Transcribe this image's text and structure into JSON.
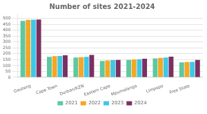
{
  "chart_data": {
    "type": "bar",
    "title": "Number of sites 2021-2024",
    "categories": [
      "Gauteng",
      "Cape Town",
      "Durban/KZN",
      "Eastern Cape",
      "Mpumalanga",
      "Limpopo",
      "Free State"
    ],
    "series": [
      {
        "name": "2021",
        "color": "#5ec8a0",
        "values": [
          480,
          175,
          168,
          140,
          148,
          162,
          128
        ]
      },
      {
        "name": "2022",
        "color": "#f5a623",
        "values": [
          488,
          180,
          172,
          143,
          152,
          166,
          130
        ]
      },
      {
        "name": "2023",
        "color": "#3ec8e8",
        "values": [
          490,
          182,
          174,
          146,
          154,
          168,
          132
        ]
      },
      {
        "name": "2024",
        "color": "#7b3060",
        "values": [
          492,
          188,
          190,
          148,
          158,
          176,
          148
        ]
      }
    ],
    "ylim": [
      0,
      540
    ],
    "yticks": [
      0,
      50,
      100,
      150,
      200,
      250,
      300,
      350,
      400,
      450,
      500
    ],
    "grid": true,
    "legend": "bottom"
  }
}
